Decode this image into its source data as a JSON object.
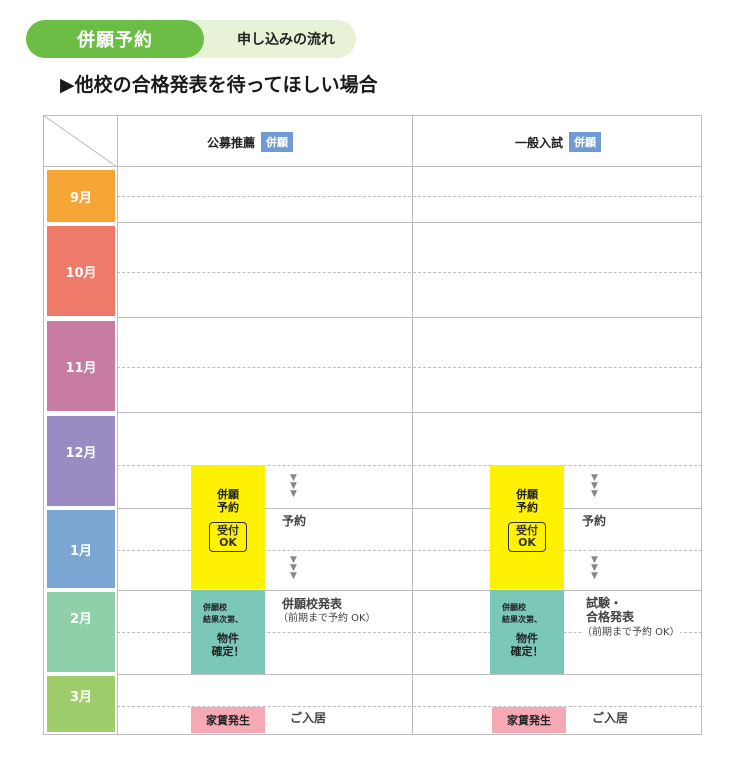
{
  "header": {
    "pill_title": "併願予約",
    "pill_subtitle": "申し込みの流れ",
    "subtitle": "▶他校の合格発表を待ってほしい場合"
  },
  "columns": {
    "left": {
      "label": "公募推薦",
      "tag": "併願"
    },
    "right": {
      "label": "一般入試",
      "tag": "併願"
    }
  },
  "months": [
    "9月",
    "10月",
    "11月",
    "12月",
    "1月",
    "2月",
    "3月"
  ],
  "month_colors": [
    "#f6a637",
    "#ee7b69",
    "#c87ca2",
    "#9a8bc2",
    "#7ba5d3",
    "#8fcfa9",
    "#9fcd6b"
  ],
  "left_flow": {
    "reserve_block": "併願\n予約",
    "accept_badge": "受付\nOK",
    "reserve_label": "予約",
    "result_small": "併願校\n結果次第、",
    "property_confirm": "物件\n確定！",
    "result_label": "併願校発表",
    "result_note": "（前期まで予約 OK）",
    "rent_block": "家賃発生",
    "move_in": "ご入居"
  },
  "right_flow": {
    "reserve_block": "併願\n予約",
    "accept_badge": "受付\nOK",
    "reserve_label": "予約",
    "result_small": "併願校\n結果次第、",
    "property_confirm": "物件\n確定！",
    "result_label": "試験・\n合格発表",
    "result_note": "（前期まで予約 OK）",
    "rent_block": "家賃発生",
    "move_in": "ご入居"
  },
  "arrow_glyph": "▼\n▼\n▼"
}
